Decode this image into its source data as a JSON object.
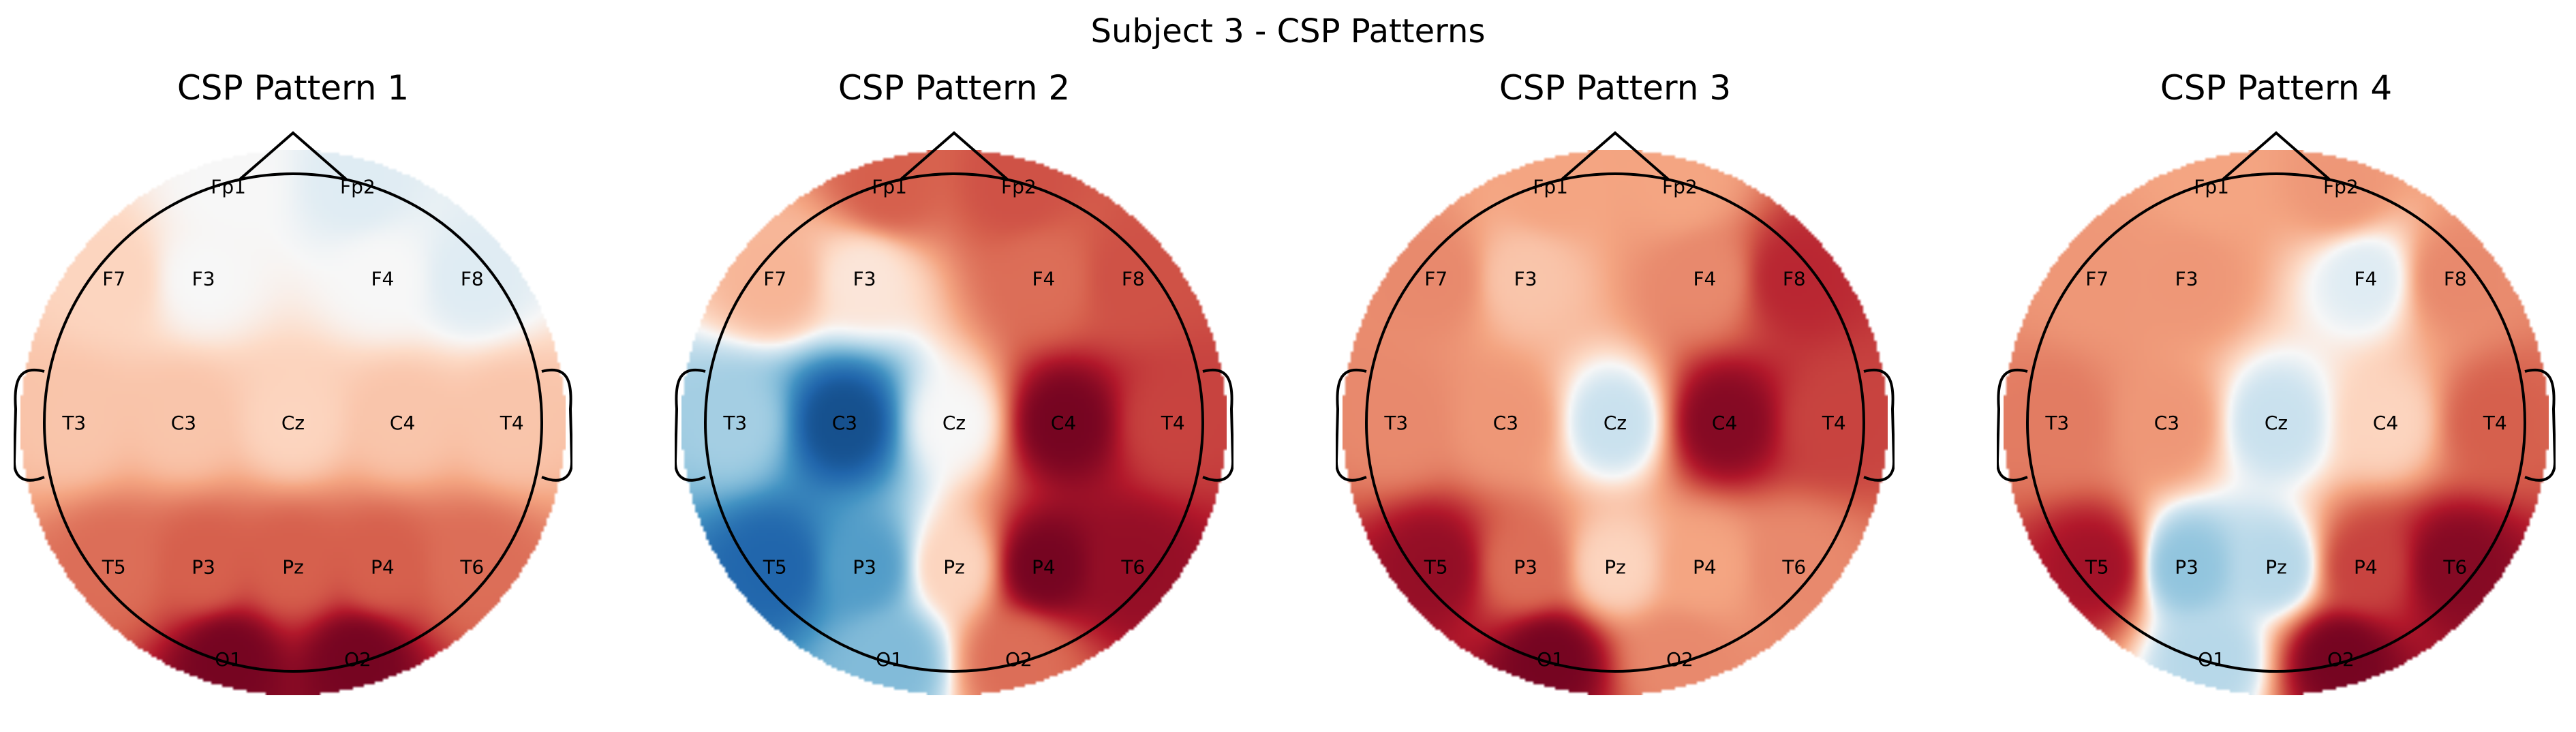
{
  "figure": {
    "title": "Subject 3 - CSP Patterns"
  },
  "chart_data": [
    {
      "type": "heatmap",
      "title": "CSP Pattern 1",
      "colormap": "RdBu_r",
      "channels": [
        "Fp1",
        "Fp2",
        "F7",
        "F3",
        "F4",
        "F8",
        "T3",
        "C3",
        "Cz",
        "C4",
        "T4",
        "T5",
        "P3",
        "Pz",
        "P4",
        "T6",
        "O1",
        "O2"
      ],
      "values": [
        0.0,
        -0.05,
        0.1,
        0.0,
        0.0,
        -0.05,
        0.15,
        0.15,
        0.1,
        0.15,
        0.15,
        0.45,
        0.5,
        0.5,
        0.5,
        0.45,
        0.95,
        0.95
      ]
    },
    {
      "type": "heatmap",
      "title": "CSP Pattern 2",
      "colormap": "RdBu_r",
      "channels": [
        "Fp1",
        "Fp2",
        "F7",
        "F3",
        "F4",
        "F8",
        "T3",
        "C3",
        "Cz",
        "C4",
        "T4",
        "T5",
        "P3",
        "Pz",
        "P4",
        "T6",
        "O1",
        "O2"
      ],
      "values": [
        0.5,
        0.55,
        0.2,
        0.05,
        0.45,
        0.55,
        -0.2,
        -0.85,
        0.0,
        0.95,
        0.6,
        -0.75,
        -0.45,
        0.1,
        0.95,
        0.85,
        -0.3,
        0.45
      ]
    },
    {
      "type": "heatmap",
      "title": "CSP Pattern 3",
      "colormap": "RdBu_r",
      "channels": [
        "Fp1",
        "Fp2",
        "F7",
        "F3",
        "F4",
        "F8",
        "T3",
        "C3",
        "Cz",
        "C4",
        "T4",
        "T5",
        "P3",
        "Pz",
        "P4",
        "T6",
        "O1",
        "O2"
      ],
      "values": [
        0.25,
        0.25,
        0.35,
        0.15,
        0.35,
        0.7,
        0.35,
        0.3,
        -0.1,
        0.9,
        0.6,
        0.85,
        0.45,
        0.1,
        0.25,
        0.35,
        0.95,
        0.35
      ]
    },
    {
      "type": "heatmap",
      "title": "CSP Pattern 4",
      "colormap": "RdBu_r",
      "channels": [
        "Fp1",
        "Fp2",
        "F7",
        "F3",
        "F4",
        "F8",
        "T3",
        "C3",
        "Cz",
        "C4",
        "T4",
        "T5",
        "P3",
        "Pz",
        "P4",
        "T6",
        "O1",
        "O2"
      ],
      "values": [
        0.25,
        0.3,
        0.3,
        0.3,
        -0.05,
        0.35,
        0.4,
        0.3,
        -0.1,
        0.1,
        0.5,
        0.8,
        -0.25,
        -0.15,
        0.6,
        0.9,
        -0.15,
        0.95
      ]
    }
  ]
}
